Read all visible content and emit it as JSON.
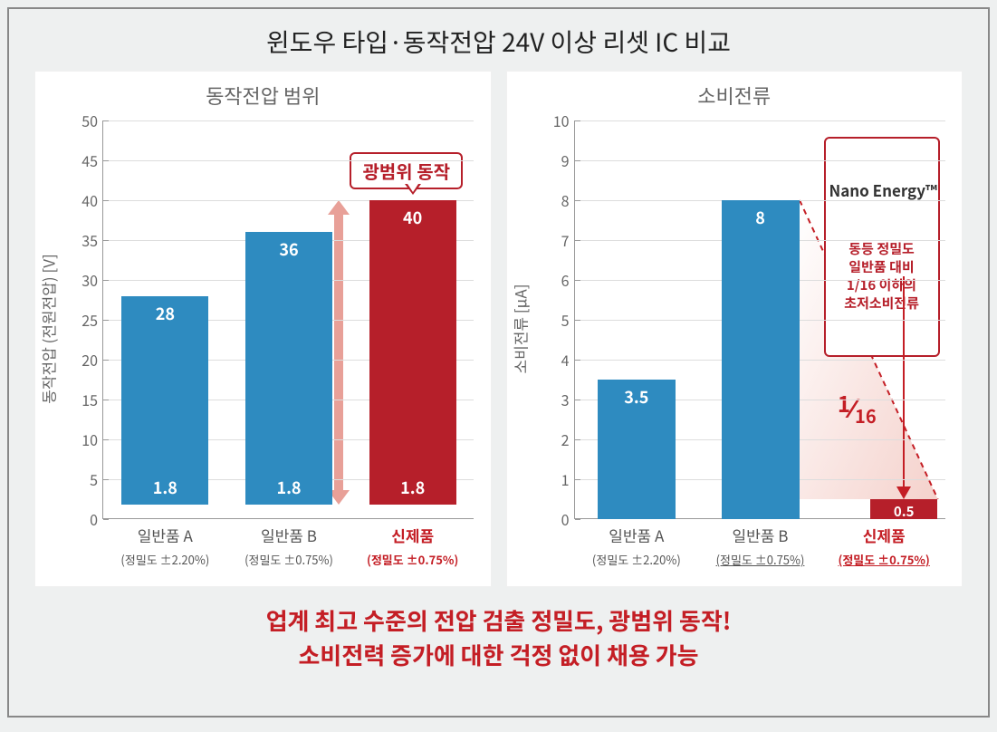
{
  "main_title": "윈도우 타입·동작전압 24V 이상 리셋 IC 비교",
  "footer_line1": "업계 최고 수준의 전압 검출 정밀도, 광범위 동작!",
  "footer_line2": "소비전력 증가에 대한 걱정 없이 채용 가능",
  "colors": {
    "blue": "#2e8bc0",
    "blue_dark": "#1f7bb8",
    "red": "#b61f2a",
    "red_bright": "#c41e25",
    "arrow_pink": "#e8a098",
    "grid": "#dddddd",
    "axis": "#999999",
    "panel_bg": "#ffffff",
    "text_grey": "#666666"
  },
  "chart_left": {
    "title": "동작전압 범위",
    "ylabel": "동작전압 (전원전압) [V]",
    "ymin": 0,
    "ymax": 50,
    "yticks": [
      0,
      5,
      10,
      15,
      20,
      25,
      30,
      35,
      40,
      45,
      50
    ],
    "bars": [
      {
        "name": "일반품 A",
        "sub": "(정밀도 ±2.20%)",
        "low": 1.8,
        "high": 28,
        "color": "#2e8bc0",
        "highlight": false
      },
      {
        "name": "일반품 B",
        "sub": "(정밀도 ±0.75%)",
        "low": 1.8,
        "high": 36,
        "color": "#2e8bc0",
        "highlight": false
      },
      {
        "name": "신제품",
        "sub": "(정밀도 ±0.75%)",
        "low": 1.8,
        "high": 40,
        "color": "#b61f2a",
        "highlight": true
      }
    ],
    "callout": "광범위 동작"
  },
  "chart_right": {
    "title": "소비전류",
    "ylabel": "소비전류 [µA]",
    "ymin": 0,
    "ymax": 10,
    "yticks": [
      0,
      1,
      2,
      3,
      4,
      5,
      6,
      7,
      8,
      9,
      10
    ],
    "bars": [
      {
        "name": "일반품 A",
        "sub": "(정밀도 ±2.20%)",
        "val": 3.5,
        "color": "#2e8bc0",
        "highlight": false,
        "underline_sub": false
      },
      {
        "name": "일반품 B",
        "sub": "(정밀도 ±0.75%)",
        "val": 8,
        "color": "#2e8bc0",
        "highlight": false,
        "underline_sub": true
      },
      {
        "name": "신제품",
        "sub": "(정밀도 ±0.75%)",
        "val": 0.5,
        "color": "#b61f2a",
        "highlight": true,
        "underline_sub": true
      }
    ],
    "callout_title": "Nano Energy™",
    "callout_body": "동등 정밀도\n일반품 대비\n1/16 이하의\n초저소비전류",
    "fraction_num": "1",
    "fraction_den": "16"
  }
}
